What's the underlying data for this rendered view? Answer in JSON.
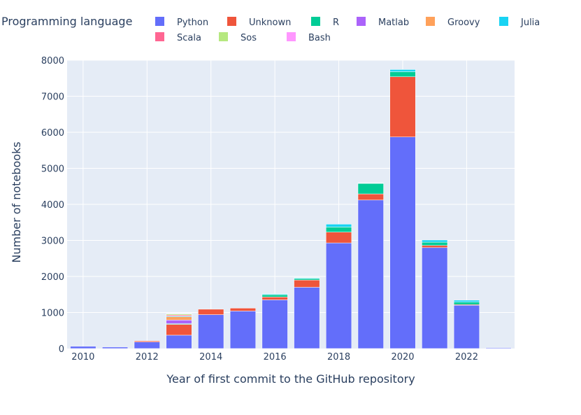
{
  "chart_data": {
    "type": "bar",
    "stacked": true,
    "xlabel": "Year of first commit to the GitHub repository",
    "ylabel": "Number of notebooks",
    "ylim": [
      0,
      8000
    ],
    "xlim": [
      2009.5,
      2023.5
    ],
    "y_ticks": [
      0,
      1000,
      2000,
      3000,
      4000,
      5000,
      6000,
      7000,
      8000
    ],
    "y_tick_labels": [
      "0",
      "1000",
      "2000",
      "3000",
      "4000",
      "5000",
      "6000",
      "7000",
      "8000"
    ],
    "x_ticks": [
      2010,
      2012,
      2014,
      2016,
      2018,
      2020,
      2022
    ],
    "x_tick_labels": [
      "2010",
      "2012",
      "2014",
      "2016",
      "2018",
      "2020",
      "2022"
    ],
    "grid": true,
    "legend_title": "Programming language",
    "legend_position": "top",
    "x": [
      2010,
      2011,
      2012,
      2013,
      2014,
      2015,
      2016,
      2017,
      2018,
      2019,
      2020,
      2021,
      2022,
      2023
    ],
    "series": [
      {
        "name": "Python",
        "color": "#636efa",
        "values": [
          60,
          40,
          180,
          370,
          940,
          1040,
          1350,
          1700,
          2930,
          4120,
          5870,
          2800,
          1200,
          20
        ]
      },
      {
        "name": "Unknown",
        "color": "#ef553b",
        "values": [
          0,
          0,
          30,
          300,
          150,
          80,
          80,
          200,
          300,
          170,
          1670,
          60,
          20,
          0
        ]
      },
      {
        "name": "R",
        "color": "#00cc96",
        "values": [
          0,
          0,
          0,
          20,
          0,
          0,
          60,
          40,
          140,
          290,
          140,
          90,
          70,
          0
        ]
      },
      {
        "name": "Matlab",
        "color": "#ab63fa",
        "values": [
          0,
          0,
          0,
          100,
          0,
          0,
          0,
          0,
          0,
          10,
          0,
          0,
          0,
          0
        ]
      },
      {
        "name": "Groovy",
        "color": "#ffa15a",
        "values": [
          0,
          0,
          0,
          90,
          0,
          0,
          0,
          0,
          0,
          0,
          0,
          0,
          0,
          0
        ]
      },
      {
        "name": "Julia",
        "color": "#19d3f3",
        "values": [
          0,
          0,
          0,
          20,
          0,
          0,
          20,
          20,
          80,
          10,
          60,
          60,
          50,
          0
        ]
      },
      {
        "name": "Scala",
        "color": "#ff6692",
        "values": [
          0,
          0,
          0,
          30,
          0,
          0,
          0,
          0,
          0,
          0,
          0,
          0,
          0,
          0
        ]
      },
      {
        "name": "Sos",
        "color": "#b6e880",
        "values": [
          0,
          0,
          0,
          30,
          0,
          0,
          10,
          10,
          0,
          0,
          0,
          0,
          0,
          0
        ]
      },
      {
        "name": "Bash",
        "color": "#ff97ff",
        "values": [
          0,
          0,
          0,
          10,
          0,
          0,
          0,
          0,
          0,
          0,
          0,
          0,
          0,
          0
        ]
      }
    ]
  }
}
